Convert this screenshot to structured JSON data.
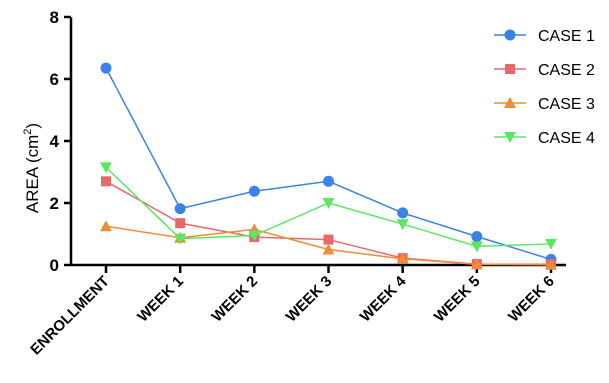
{
  "chart_data": {
    "type": "line",
    "categories": [
      "ENROLLMENT",
      "WEEK 1",
      "WEEK 2",
      "WEEK 3",
      "WEEK 4",
      "WEEK 5",
      "WEEK 6"
    ],
    "ylabel": "AREA (cm",
    "ylabel_sup": "2",
    "ylabel_close": ")",
    "ylim": [
      0,
      8
    ],
    "yticks": [
      "0",
      "2",
      "4",
      "6",
      "8"
    ],
    "legend_position": "top-right",
    "grid": false,
    "series": [
      {
        "name": "CASE 1",
        "color": "#3b82e8",
        "marker": "circle",
        "values": [
          6.35,
          1.82,
          2.38,
          2.7,
          1.68,
          0.92,
          0.18
        ]
      },
      {
        "name": "CASE 2",
        "color": "#e8676b",
        "marker": "square",
        "values": [
          2.7,
          1.35,
          0.9,
          0.82,
          0.22,
          0.03,
          0.02
        ]
      },
      {
        "name": "CASE 3",
        "color": "#ef8c35",
        "marker": "triangle-up",
        "values": [
          1.25,
          0.88,
          1.15,
          0.5,
          0.2,
          0.02,
          0.01
        ]
      },
      {
        "name": "CASE 4",
        "color": "#5be860",
        "marker": "triangle-down",
        "values": [
          3.15,
          0.85,
          0.95,
          2.0,
          1.32,
          0.6,
          0.68
        ]
      }
    ]
  }
}
